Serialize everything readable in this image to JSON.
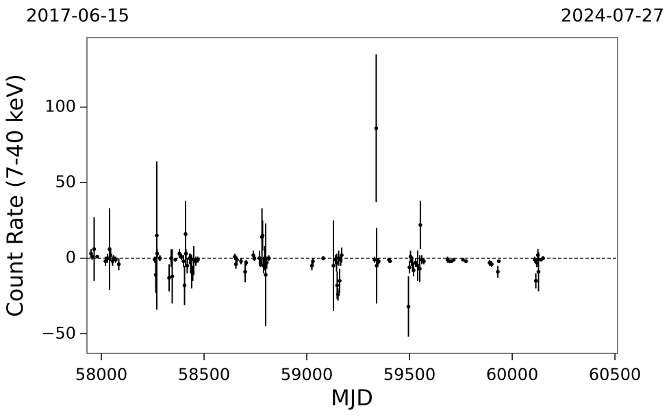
{
  "chart_data": {
    "type": "errorbar",
    "annotations": [
      "2017-06-15",
      "2024-07-27"
    ],
    "xlabel": "MJD",
    "ylabel": "Count Rate (7-40 keV)",
    "color": "#000000",
    "x": [
      57950,
      57955,
      57965,
      57980,
      58020,
      58030,
      58040,
      58045,
      58055,
      58060,
      58070,
      58085,
      58260,
      58265,
      58270,
      58272,
      58285,
      58330,
      58340,
      58345,
      58360,
      58380,
      58390,
      58400,
      58405,
      58410,
      58412,
      58418,
      58430,
      58435,
      58440,
      58445,
      58450,
      58460,
      58470,
      58650,
      58655,
      58660,
      58680,
      58700,
      58705,
      58740,
      58745,
      58770,
      58775,
      58782,
      58785,
      58790,
      58795,
      58800,
      58805,
      58815,
      59025,
      59030,
      59080,
      59130,
      59140,
      59145,
      59148,
      59152,
      59155,
      59160,
      59165,
      59170,
      59330,
      59338,
      59340,
      59345,
      59350,
      59400,
      59405,
      59495,
      59500,
      59505,
      59510,
      59515,
      59520,
      59530,
      59540,
      59550,
      59553,
      59560,
      59570,
      59685,
      59695,
      59705,
      59715,
      59760,
      59775,
      59890,
      59900,
      59930,
      59935,
      60110,
      60115,
      60120,
      60125,
      60128,
      60140,
      60150
    ],
    "values": [
      3,
      1,
      6,
      1,
      -2,
      0,
      6,
      2,
      -2,
      0,
      -1,
      -4,
      -1,
      -11,
      15,
      3,
      0,
      -13,
      0,
      -12,
      -1,
      3,
      1,
      -2,
      -18,
      16,
      3,
      -5,
      0,
      -3,
      -9,
      -10,
      -1,
      -2,
      -1,
      1,
      -4,
      -1,
      -2,
      -9,
      -3,
      2,
      0,
      0,
      -3,
      14,
      15,
      -5,
      0,
      -11,
      -3,
      0,
      -5,
      -2,
      0,
      -5,
      -1,
      -3,
      -18,
      -24,
      0,
      -15,
      -1,
      2,
      -1,
      86,
      -5,
      -3,
      -2,
      -1,
      -2,
      -32,
      -6,
      1,
      -2,
      -4,
      -8,
      -3,
      -5,
      -7,
      22,
      -1,
      -2,
      -1,
      -2,
      -2,
      -1,
      -1,
      -2,
      -3,
      -4,
      -9,
      -2,
      -1,
      -15,
      -3,
      2,
      -9,
      -1,
      0
    ],
    "errors": [
      3,
      2,
      21,
      1,
      3,
      3,
      27,
      4,
      3,
      2,
      2,
      4,
      2,
      12,
      49,
      3,
      2,
      9,
      6,
      18,
      1,
      3,
      2,
      4,
      13,
      22,
      3,
      5,
      3,
      6,
      11,
      5,
      9,
      3,
      2,
      2,
      3,
      2,
      2,
      7,
      2,
      3,
      2,
      5,
      3,
      19,
      10,
      5,
      8,
      34,
      4,
      2,
      3,
      2,
      1,
      30,
      3,
      6,
      9,
      4,
      5,
      8,
      4,
      5,
      2,
      49,
      25,
      3,
      2,
      1,
      1,
      20,
      4,
      4,
      3,
      5,
      4,
      3,
      10,
      9,
      16,
      3,
      2,
      2,
      1,
      1,
      1,
      1,
      1,
      2,
      2,
      4,
      1,
      2,
      5,
      3,
      4,
      13,
      1,
      1
    ],
    "hline": 0,
    "xlim": [
      57930,
      60513
    ],
    "ylim": [
      -63,
      146
    ],
    "xticks": [
      58000,
      58500,
      59000,
      59500,
      60000,
      60500
    ],
    "yticks": [
      {
        "value": -50,
        "label": "−50"
      },
      0,
      50,
      100
    ]
  }
}
